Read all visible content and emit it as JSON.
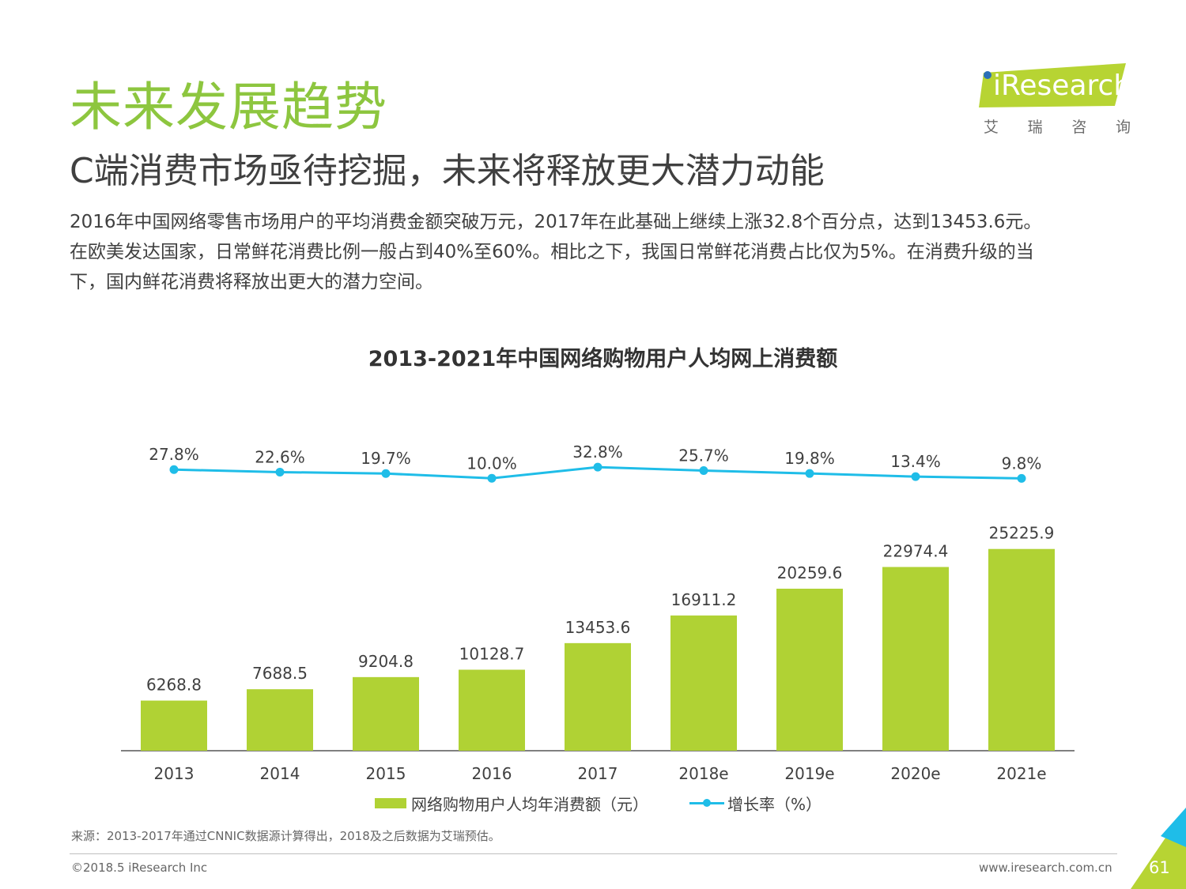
{
  "header": {
    "title": "未来发展趋势",
    "subtitle": "C端消费市场亟待挖掘，未来将释放更大潜力动能",
    "intro": [
      "2016年中国网络零售市场用户的平均消费金额突破万元，2017年在此基础上继续上涨32.8个百分点，达到13453.6元。",
      "在欧美发达国家，日常鲜花消费比例一般占到40%至60%。相比之下，我国日常鲜花消费占比仅为5%。在消费升级的当",
      "下，国内鲜花消费将释放出更大的潜力空间。"
    ]
  },
  "logo": {
    "wordmark": "iResearch",
    "cn_chars": [
      "艾",
      "瑞",
      "咨",
      "询"
    ],
    "colors": {
      "green": "#b7d433",
      "dot": "#2b6fb8"
    }
  },
  "chart_data": {
    "type": "bar",
    "title": "2013-2021年中国网络购物用户人均网上消费额",
    "categories": [
      "2013",
      "2014",
      "2015",
      "2016",
      "2017",
      "2018e",
      "2019e",
      "2020e",
      "2021e"
    ],
    "series": [
      {
        "name": "网络购物用户人均年消费额（元）",
        "type": "bar",
        "color": "#b0d234",
        "values": [
          6268.8,
          7688.5,
          9204.8,
          10128.7,
          13453.6,
          16911.2,
          20259.6,
          22974.4,
          25225.9
        ],
        "labels": [
          "6268.8",
          "7688.5",
          "9204.8",
          "10128.7",
          "13453.6",
          "16911.2",
          "20259.6",
          "22974.4",
          "25225.9"
        ]
      },
      {
        "name": "增长率（%）",
        "type": "line",
        "color": "#1fbde8",
        "values": [
          27.8,
          22.6,
          19.7,
          10.0,
          32.8,
          25.7,
          19.8,
          13.4,
          9.8
        ],
        "labels": [
          "27.8%",
          "22.6%",
          "19.7%",
          "10.0%",
          "32.8%",
          "25.7%",
          "19.8%",
          "13.4%",
          "9.8%"
        ]
      }
    ],
    "legend_position": "bottom",
    "grid": false
  },
  "footer": {
    "source": "来源：2013-2017年通过CNNIC数据源计算得出，2018及之后数据为艾瑞预估。",
    "copyright": "©2018.5 iResearch Inc",
    "website": "www.iresearch.com.cn",
    "page": "61",
    "accent_colors": {
      "blue": "#1fbde8",
      "green": "#b7d433"
    }
  }
}
